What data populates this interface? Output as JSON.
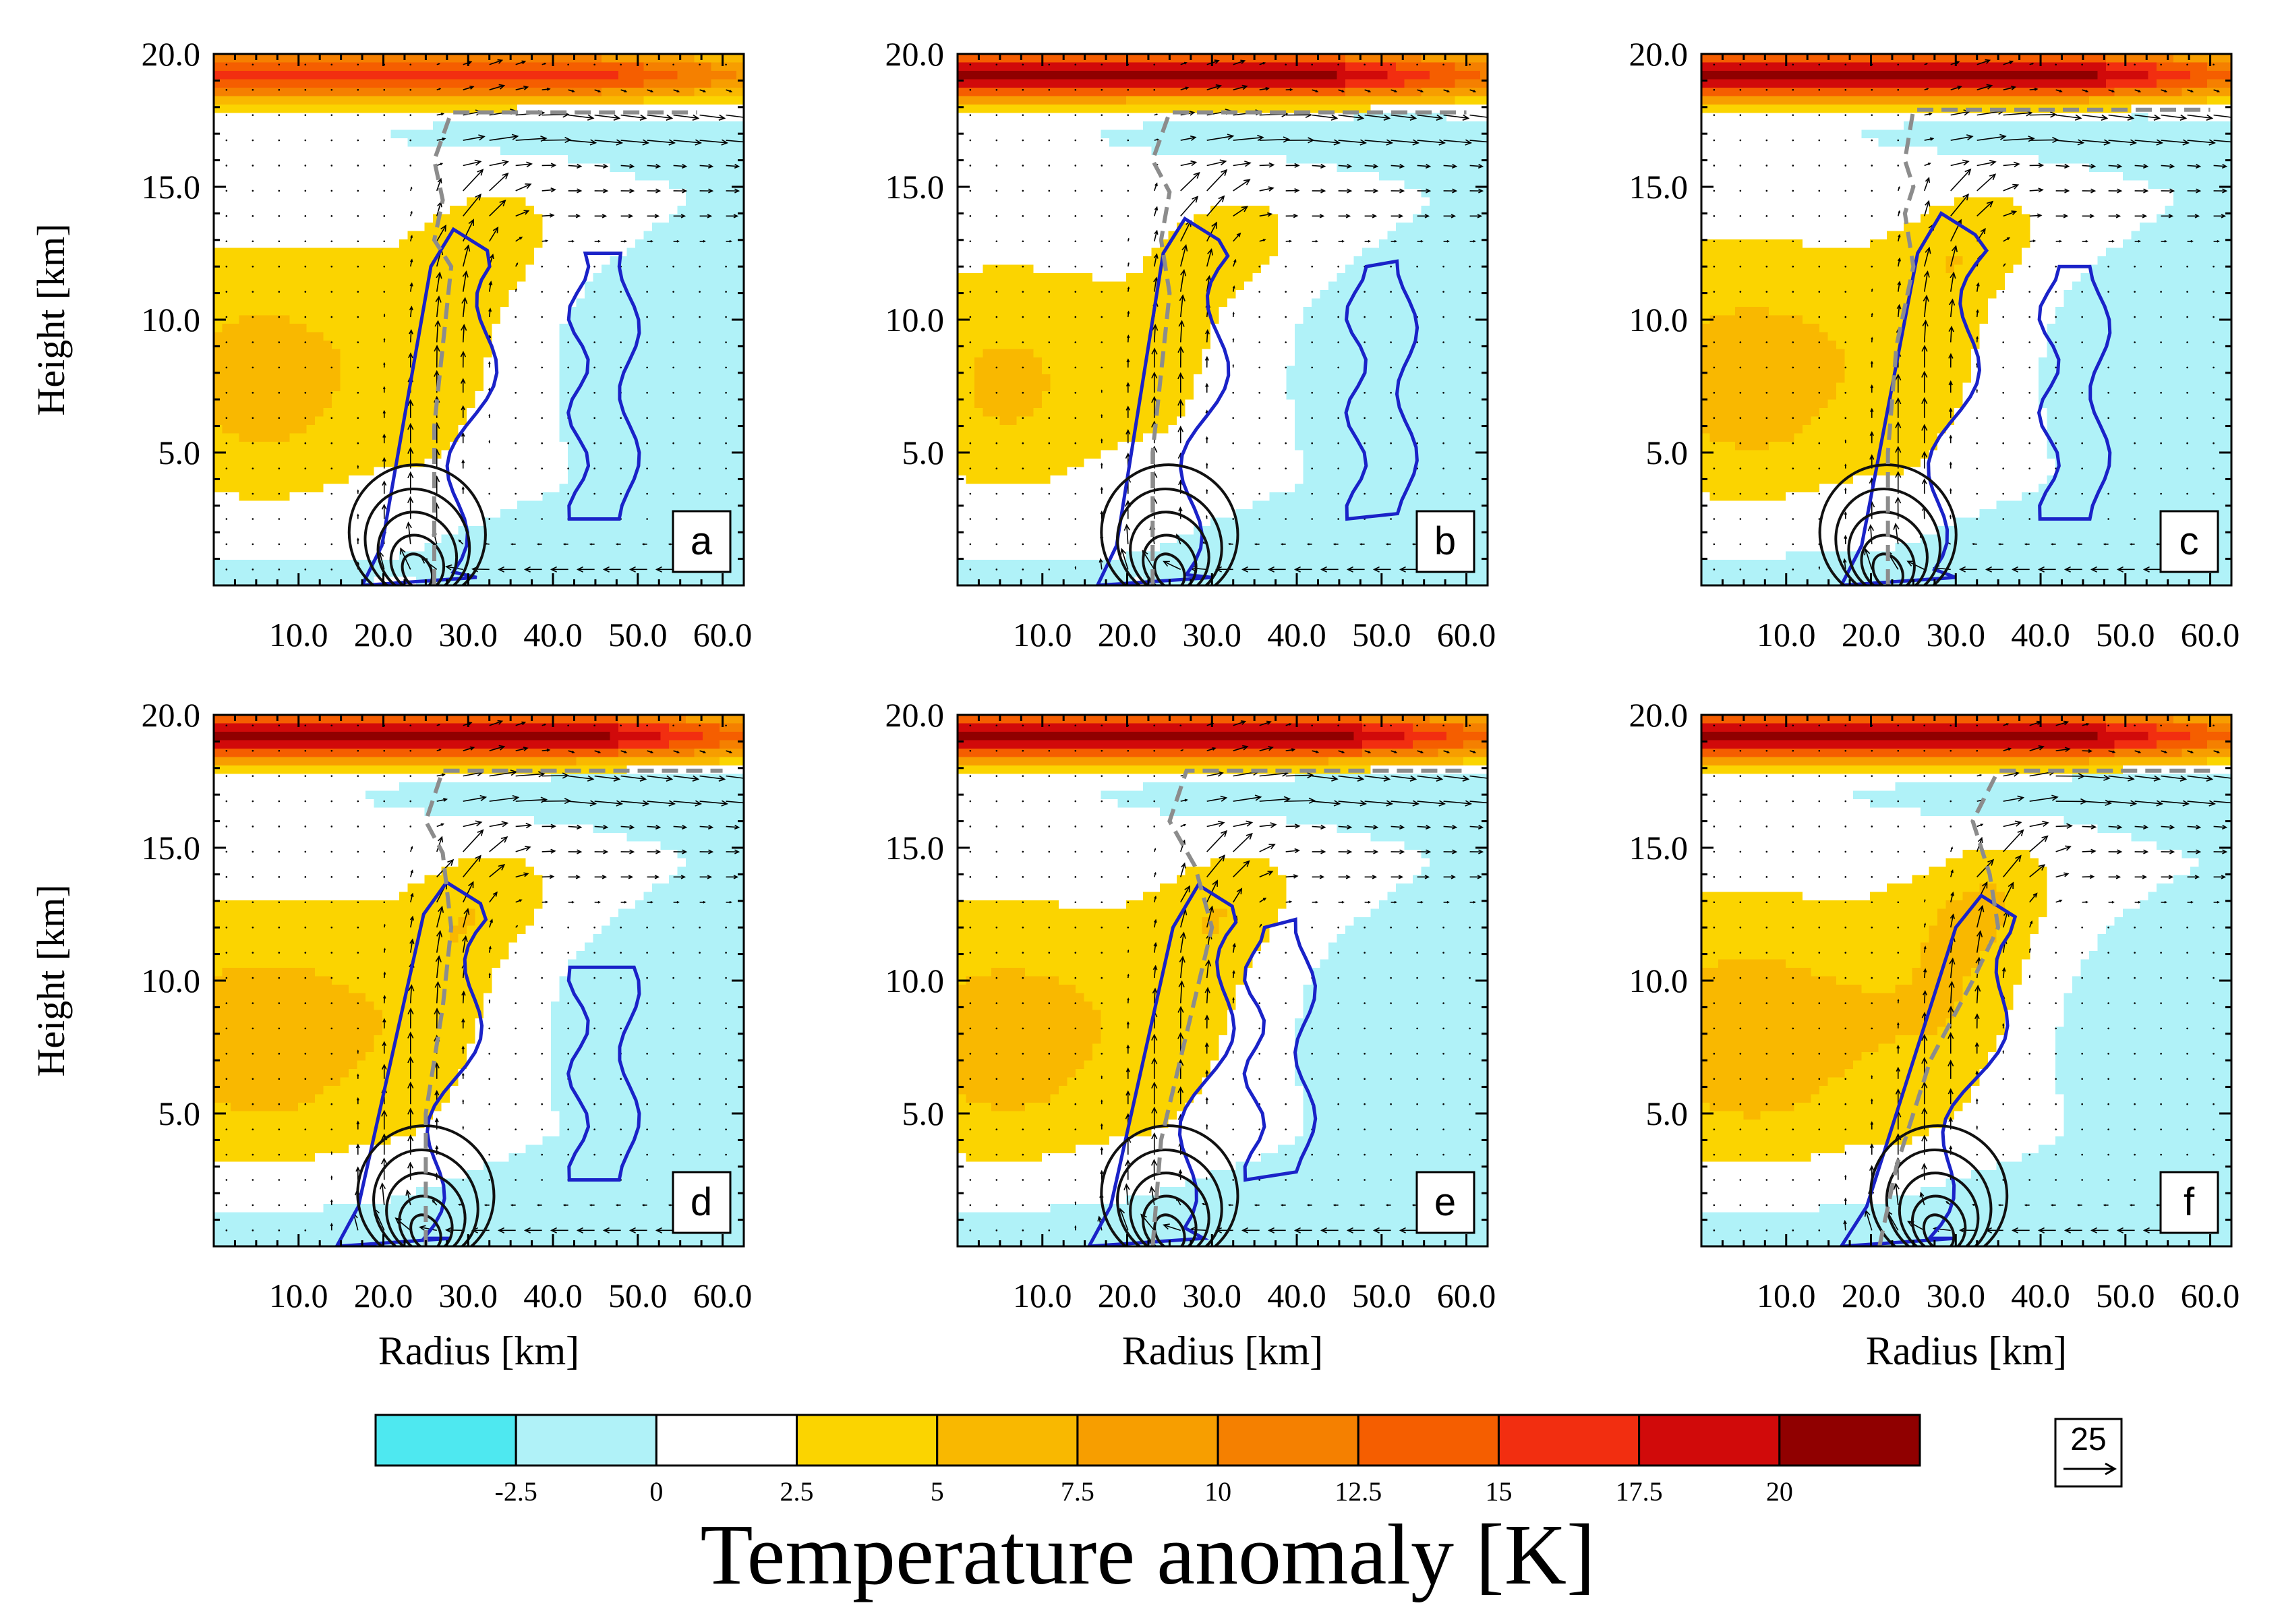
{
  "chart_data": {
    "type": "heatmap",
    "description_units": {
      "x": "km",
      "y": "km",
      "color": "K"
    },
    "panels_common": {
      "xlabel": "Radius [km]",
      "ylabel": "Height [km]",
      "xlim": [
        0,
        62.5
      ],
      "ylim": [
        0,
        20
      ],
      "xticks": [
        10,
        20,
        30,
        40,
        50,
        60
      ],
      "xtick_labels": [
        "10.0",
        "20.0",
        "30.0",
        "40.0",
        "50.0",
        "60.0"
      ],
      "yticks": [
        5,
        10,
        15,
        20
      ],
      "ytick_labels": [
        "5.0",
        "10.0",
        "15.0",
        "20.0"
      ]
    },
    "panels": [
      {
        "id": "a",
        "label": "a",
        "strat_anom": 16,
        "upper_cold": -1.5,
        "core_warm": 4.2,
        "low_cold": -1.0,
        "eyewall_top_height": 13.2,
        "eyewall_base_radius": 19,
        "eyewall_lean": 0.55,
        "outer_band": {
          "r": 46,
          "top": 12.5
        },
        "rmw_line": [
          [
            26,
            0
          ],
          [
            26,
            6
          ],
          [
            27,
            9
          ],
          [
            28,
            12
          ],
          [
            26,
            13
          ],
          [
            27,
            14.5
          ],
          [
            26,
            16
          ],
          [
            28,
            17.8
          ],
          [
            57,
            17.8
          ]
        ],
        "inflow_max_radius": 23
      },
      {
        "id": "b",
        "label": "b",
        "strat_anom": 20,
        "upper_cold": -2.0,
        "core_warm": 3.2,
        "low_cold": -0.8,
        "eyewall_top_height": 13.6,
        "eyewall_base_radius": 18,
        "eyewall_lean": 0.5,
        "outer_band": {
          "r": 50,
          "top": 12.2
        },
        "rmw_line": [
          [
            23,
            0
          ],
          [
            23,
            5
          ],
          [
            24,
            8
          ],
          [
            25,
            11
          ],
          [
            24,
            13
          ],
          [
            25,
            14.8
          ],
          [
            23,
            16
          ],
          [
            25,
            17.8
          ],
          [
            60,
            17.8
          ]
        ],
        "inflow_max_radius": 24
      },
      {
        "id": "c",
        "label": "c",
        "strat_anom": 21,
        "upper_cold": -2.0,
        "core_warm": 4.5,
        "low_cold": -1.2,
        "eyewall_top_height": 13.8,
        "eyewall_base_radius": 18,
        "eyewall_lean": 0.6,
        "outer_band": {
          "r": 44,
          "top": 12.0
        },
        "rmw_line": [
          [
            22,
            0
          ],
          [
            22,
            5
          ],
          [
            23,
            9
          ],
          [
            25,
            12
          ],
          [
            24,
            14
          ],
          [
            25,
            15
          ],
          [
            24,
            16
          ],
          [
            25,
            17.9
          ],
          [
            60,
            17.9
          ]
        ],
        "inflow_max_radius": 21
      },
      {
        "id": "d",
        "label": "d",
        "strat_anom": 21,
        "upper_cold": -2.5,
        "core_warm": 4.8,
        "low_cold": -2.0,
        "eyewall_top_height": 13.5,
        "eyewall_base_radius": 16,
        "eyewall_lean": 0.7,
        "outer_band": {
          "r": 46,
          "top": 10.5
        },
        "rmw_line": [
          [
            25,
            0
          ],
          [
            25,
            5
          ],
          [
            27,
            9
          ],
          [
            28,
            12
          ],
          [
            27,
            14.8
          ],
          [
            25,
            16
          ],
          [
            27,
            17.9
          ],
          [
            60,
            17.9
          ]
        ],
        "inflow_max_radius": 24
      },
      {
        "id": "e",
        "label": "e",
        "strat_anom": 21,
        "upper_cold": -2.5,
        "core_warm": 4.5,
        "low_cold": -2.0,
        "eyewall_top_height": 13.4,
        "eyewall_base_radius": 17,
        "eyewall_lean": 0.7,
        "outer_band": {
          "r": 38,
          "top": 12.3
        },
        "rmw_line": [
          [
            23,
            0
          ],
          [
            24,
            4
          ],
          [
            27,
            8
          ],
          [
            30,
            12
          ],
          [
            28,
            14.3
          ],
          [
            25,
            16
          ],
          [
            27,
            17.9
          ],
          [
            60,
            17.9
          ]
        ],
        "inflow_max_radius": 24
      },
      {
        "id": "f",
        "label": "f",
        "strat_anom": 21,
        "upper_cold": -2.5,
        "core_warm": 5.0,
        "low_cold": -2.0,
        "eyewall_top_height": 13.0,
        "eyewall_base_radius": 18,
        "eyewall_lean": 1.0,
        "outer_band": null,
        "rmw_line": [
          [
            21,
            0
          ],
          [
            23,
            3
          ],
          [
            27,
            7
          ],
          [
            32,
            10
          ],
          [
            35,
            12
          ],
          [
            34,
            14
          ],
          [
            32,
            16
          ],
          [
            35,
            17.9
          ],
          [
            60,
            17.9
          ]
        ],
        "inflow_max_radius": 27
      }
    ],
    "colorbar": {
      "title": "Temperature anomaly [K]",
      "levels": [
        -2.5,
        0,
        2.5,
        5,
        7.5,
        10,
        12.5,
        15,
        17.5,
        20
      ],
      "tick_labels": [
        "-2.5",
        "0",
        "2.5",
        "5",
        "7.5",
        "10",
        "12.5",
        "15",
        "17.5",
        "20"
      ],
      "colors": [
        "#4ee8f0",
        "#b0f2f8",
        "#ffffff",
        "#fbd400",
        "#f9b800",
        "#f79e00",
        "#f58000",
        "#f55e00",
        "#f22e10",
        "#d10a0a",
        "#900000"
      ]
    },
    "reference_vector": {
      "value": "25"
    },
    "contour_colors": {
      "eyewall": "#1a22c8",
      "inflow": "#111111",
      "rmw": "#8c8c8c",
      "vector": "#000000"
    }
  }
}
